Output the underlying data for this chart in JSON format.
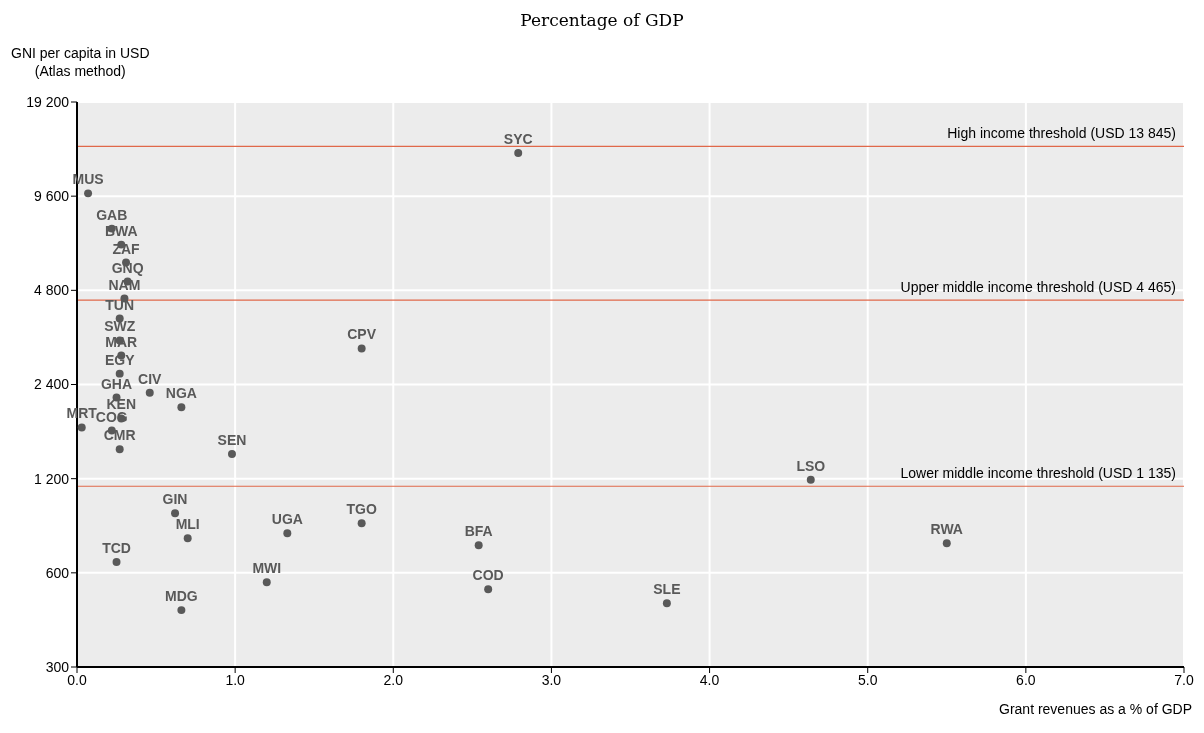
{
  "chart_data": {
    "type": "scatter",
    "subtitle": "Percentage of GDP",
    "xlabel": "Grant revenues as a % of GDP",
    "ylabel": "GNI per capita in USD\n(Atlas method)",
    "x": [
      0.07,
      2.79,
      0.22,
      0.28,
      0.31,
      0.32,
      0.3,
      0.27,
      0.27,
      0.28,
      0.27,
      0.46,
      0.25,
      0.66,
      0.28,
      0.03,
      0.22,
      1.8,
      0.27,
      0.98,
      4.64,
      0.62,
      0.7,
      1.33,
      1.8,
      2.54,
      5.5,
      0.25,
      1.2,
      2.6,
      3.73,
      0.66
    ],
    "series": [
      {
        "color": "#595959",
        "values": [
          9800,
          13200,
          7560,
          6720,
          5890,
          5120,
          4520,
          3900,
          3320,
          2970,
          2600,
          2260,
          2180,
          2030,
          1870,
          1750,
          1710,
          3130,
          1490,
          1440,
          1190,
          930,
          774,
          803,
          864,
          735,
          746,
          650,
          560,
          532,
          480,
          456
        ],
        "value_labels": [
          "MUS",
          "SYC",
          "GAB",
          "BWA",
          "ZAF",
          "GNQ",
          "NAM",
          "TUN",
          "SWZ",
          "MAR",
          "EGY",
          "CIV",
          "GHA",
          "NGA",
          "KEN",
          "MRT",
          "COG",
          "CPV",
          "CMR",
          "SEN",
          "LSO",
          "GIN",
          "MLI",
          "UGA",
          "TGO",
          "BFA",
          "RWA",
          "TCD",
          "MWI",
          "COD",
          "SLE",
          "MDG"
        ]
      }
    ],
    "marker": "circle",
    "log": "y",
    "grid": true,
    "xlim": [
      0,
      7
    ],
    "xticks": [
      {
        "value": 0,
        "label": "0.0"
      },
      {
        "value": 1,
        "label": "1.0"
      },
      {
        "value": 2,
        "label": "2.0"
      },
      {
        "value": 3,
        "label": "3.0"
      },
      {
        "value": 4,
        "label": "4.0"
      },
      {
        "value": 5,
        "label": "5.0"
      },
      {
        "value": 6,
        "label": "6.0"
      },
      {
        "value": 7,
        "label": "7.0"
      }
    ],
    "ylim": [
      300,
      19200
    ],
    "yticks": [
      300,
      600,
      {
        "value": 1200,
        "label": "1 200"
      },
      {
        "value": 2400,
        "label": "2 400"
      },
      {
        "value": 4800,
        "label": "4 800"
      },
      {
        "value": 9600,
        "label": "9 600"
      },
      {
        "value": 19200,
        "label": "19 200"
      }
    ],
    "ref_lines": [
      {
        "axis": "y",
        "value": 13845,
        "label": "High income threshold (USD 13 845)",
        "color": "#e0684a"
      },
      {
        "axis": "y",
        "value": 4465,
        "label": "Upper middle income threshold (USD 4 465)",
        "color": "#e0684a"
      },
      {
        "axis": "y",
        "value": 1135,
        "label": "Lower middle income threshold (USD 1 135)",
        "color": "#e0684a"
      }
    ]
  }
}
